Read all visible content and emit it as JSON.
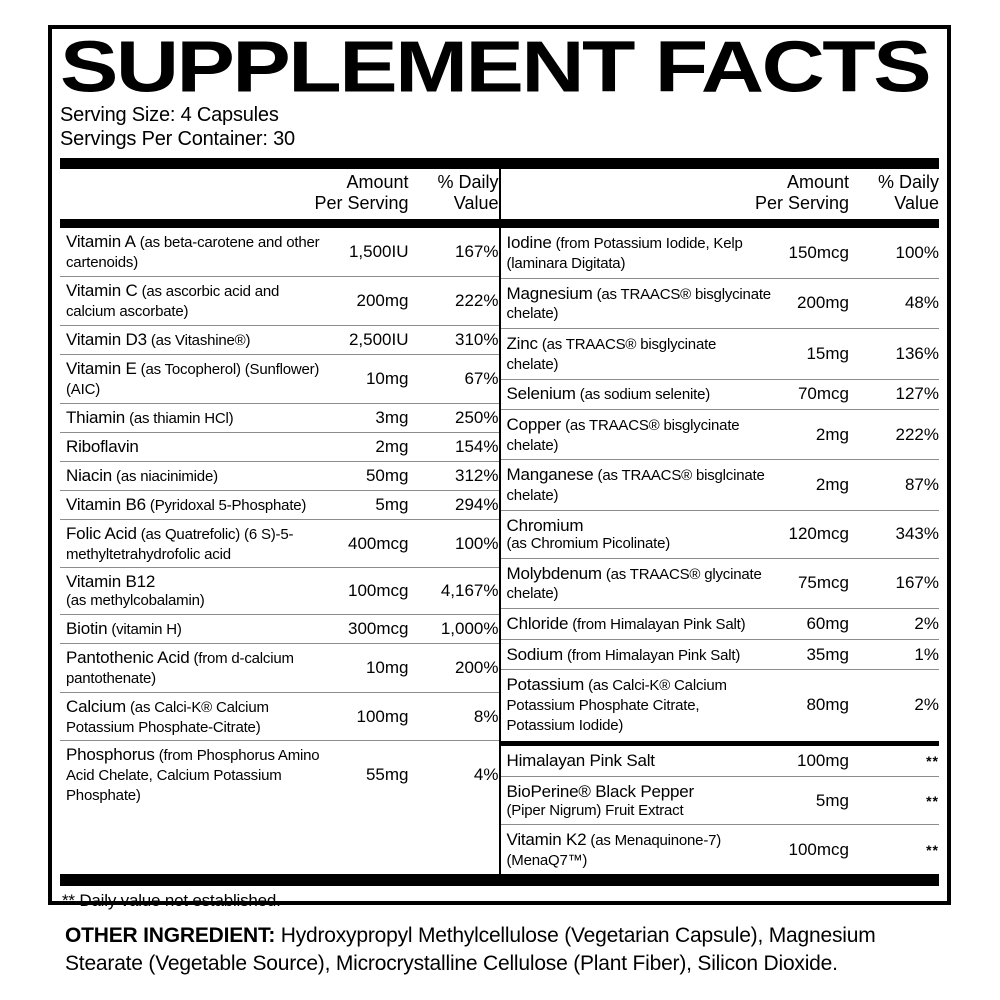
{
  "title": "SUPPLEMENT FACTS",
  "serving": {
    "size": "Serving Size: 4 Capsules",
    "per_container": "Servings Per Container: 30"
  },
  "column_header": {
    "amount_l1": "Amount",
    "amount_l2": "Per Serving",
    "daily_l1": "% Daily",
    "daily_l2": "Value"
  },
  "left_rows": [
    {
      "name": "Vitamin A",
      "detail": "(as beta-carotene and other cartenoids)",
      "amount": "1,500IU",
      "dv": "167%"
    },
    {
      "name": "Vitamin C",
      "detail": "(as ascorbic acid and calcium ascorbate)",
      "amount": "200mg",
      "dv": "222%"
    },
    {
      "name": "Vitamin D3",
      "detail": "(as Vitashine®)",
      "amount": "2,500IU",
      "dv": "310%"
    },
    {
      "name": "Vitamin E",
      "detail": "(as Tocopherol) (Sunflower) (AIC)",
      "amount": "10mg",
      "dv": "67%"
    },
    {
      "name": "Thiamin",
      "detail": "(as thiamin HCl)",
      "amount": "3mg",
      "dv": "250%"
    },
    {
      "name": "Riboflavin",
      "detail": "",
      "amount": "2mg",
      "dv": "154%"
    },
    {
      "name": "Niacin",
      "detail": "(as niacinimide)",
      "amount": "50mg",
      "dv": "312%"
    },
    {
      "name": "Vitamin B6",
      "detail": "(Pyridoxal 5-Phosphate)",
      "amount": "5mg",
      "dv": "294%"
    },
    {
      "name": "Folic Acid",
      "detail": "(as Quatrefolic) (6 S)-5-methyltetrahydrofolic acid",
      "amount": "400mcg",
      "dv": "100%"
    },
    {
      "name": "Vitamin B12",
      "detail": "(as methylcobalamin)",
      "newline": true,
      "amount": "100mcg",
      "dv": "4,167%"
    },
    {
      "name": "Biotin",
      "detail": "(vitamin H)",
      "amount": "300mcg",
      "dv": "1,000%"
    },
    {
      "name": "Pantothenic Acid",
      "detail": "(from d-calcium pantothenate)",
      "amount": "10mg",
      "dv": "200%"
    },
    {
      "name": "Calcium",
      "detail": "(as Calci-K® Calcium Potassium Phosphate-Citrate)",
      "amount": "100mg",
      "dv": "8%"
    },
    {
      "name": "Phosphorus",
      "detail": "(from Phosphorus Amino Acid Chelate, Calcium Potassium Phosphate)",
      "amount": "55mg",
      "dv": "4%"
    }
  ],
  "right_rows": [
    {
      "name": "Iodine",
      "detail": "(from Potassium Iodide, Kelp (laminara Digitata)",
      "amount": "150mcg",
      "dv": "100%"
    },
    {
      "name": "Magnesium",
      "detail": "(as TRAACS® bisglycinate chelate)",
      "amount": "200mg",
      "dv": "48%"
    },
    {
      "name": "Zinc",
      "detail": "(as TRAACS® bisglycinate chelate)",
      "amount": "15mg",
      "dv": "136%"
    },
    {
      "name": "Selenium",
      "detail": "(as sodium selenite)",
      "amount": "70mcg",
      "dv": "127%"
    },
    {
      "name": "Copper",
      "detail": "(as TRAACS® bisglycinate chelate)",
      "amount": "2mg",
      "dv": "222%"
    },
    {
      "name": "Manganese",
      "detail": "(as TRAACS® bisglcinate chelate)",
      "amount": "2mg",
      "dv": "87%"
    },
    {
      "name": "Chromium",
      "detail": "(as Chromium Picolinate)",
      "newline": true,
      "amount": "120mcg",
      "dv": "343%"
    },
    {
      "name": "Molybdenum",
      "detail": "(as TRAACS® glycinate chelate)",
      "amount": "75mcg",
      "dv": "167%"
    },
    {
      "name": "Chloride",
      "detail": "(from Himalayan Pink Salt)",
      "amount": "60mg",
      "dv": "2%"
    },
    {
      "name": "Sodium",
      "detail": "(from Himalayan Pink Salt)",
      "amount": "35mg",
      "dv": "1%"
    },
    {
      "name": "Potassium",
      "detail": "(as Calci-K® Calcium Potassium Phosphate Citrate, Potassium Iodide)",
      "amount": "80mg",
      "dv": "2%"
    },
    {
      "type": "bar"
    },
    {
      "name": "Himalayan Pink Salt",
      "detail": "",
      "amount": "100mg",
      "dv": "**"
    },
    {
      "name": "BioPerine® Black Pepper",
      "detail": "(Piper Nigrum) Fruit Extract",
      "newline": true,
      "amount": "5mg",
      "dv": "**"
    },
    {
      "name": "Vitamin K2",
      "detail": "(as Menaquinone-7) (MenaQ7™)",
      "amount": "100mcg",
      "dv": "**"
    }
  ],
  "footnote": "** Daily value not established.",
  "other_ingredients": {
    "label": "OTHER INGREDIENT:",
    "text": " Hydroxypropyl Methylcellulose (Vegetarian Capsule), Magnesium Stearate (Vegetable Source), Microcrystalline Cellulose (Plant Fiber), Silicon Dioxide."
  },
  "colors": {
    "ink": "#000000",
    "paper": "#ffffff",
    "rule": "#8d8d8d"
  }
}
